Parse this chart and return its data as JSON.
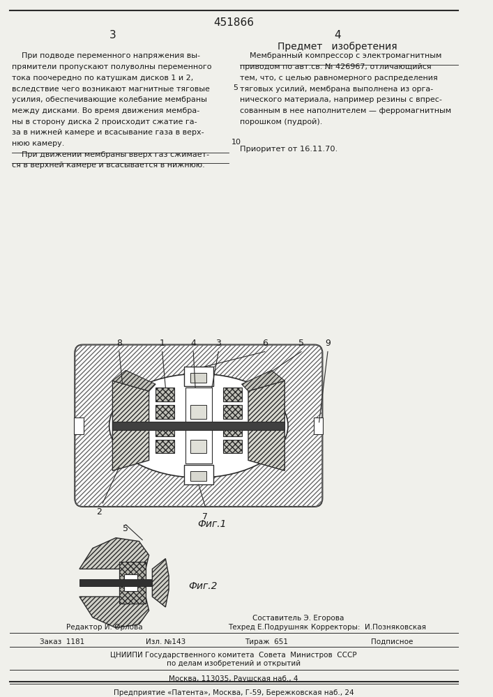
{
  "patent_number": "451866",
  "page_left": "3",
  "page_right": "4",
  "section_title": "Предмет   изобретения",
  "left_text": [
    "    При подводе переменного напряжения вы-",
    "прямители пропускают полуволны переменного",
    "тока поочередно по катушкам дисков 1 и 2,",
    "вследствие чего возникают магнитные тяговые",
    "усилия, обеспечивающие колебание мембраны",
    "между дисками. Во время движения мембра-",
    "ны в сторону диска 2 происходит сжатие га-",
    "за в нижней камере и всасывание газа в верх-",
    "нюю камеру.",
    "    При движении мембраны вверх газ сжимает-",
    "ся в верхней камере и всасывается в нижнюю."
  ],
  "right_text": [
    "    Мембранный компрессор с электромагнитным",
    "приводом по авт.св. № 426967, отличающийся",
    "тем, что, с целью равномерного распределения",
    "тяговых усилий, мембрана выполнена из орга-",
    "нического материала, например резины с впрес-",
    "сованным в нее наполнителем — ферромагнитным",
    "порошком (пудрой)."
  ],
  "priority_text": "Приоритет от 16.11.70.",
  "fig1_caption": "Фиг.1",
  "fig2_caption": "Фиг.2",
  "footer_lines": [
    "Составитель Э. Егорова",
    "Редактор И. Орлова",
    "Техред Е.Подрушняк",
    "Корректоры:  И.Позняковская",
    "Заказ  1181",
    "Изл. №143",
    "Тираж  651",
    "Подписное",
    "ЦНИИПИ Государственного комитета  Совета  Министров  СССР",
    "по делам изобретений и открытий",
    "Москва, 113035, Раушская наб., 4",
    "Предприятие «Патента», Москва, Г-59, Бережковская наб., 24"
  ],
  "bg_color": "#f0f0eb",
  "text_color": "#1a1a1a",
  "line_color": "#2a2a2a"
}
